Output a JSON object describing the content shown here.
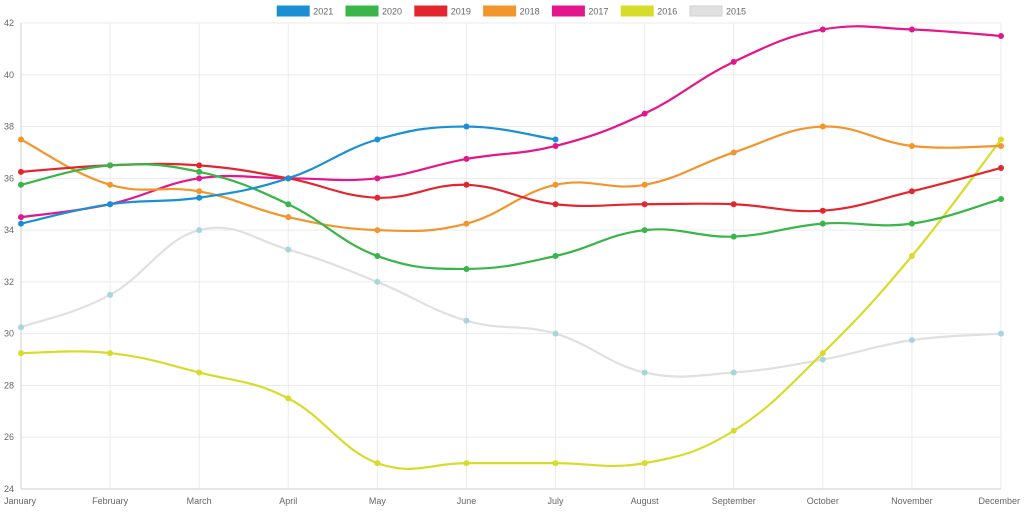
{
  "chart_data": {
    "type": "line",
    "title": "",
    "xlabel": "",
    "ylabel": "",
    "categories": [
      "January",
      "February",
      "March",
      "April",
      "May",
      "June",
      "July",
      "August",
      "September",
      "October",
      "November",
      "December"
    ],
    "ylim": [
      24,
      42
    ],
    "yticks": [
      24,
      26,
      28,
      30,
      32,
      34,
      36,
      38,
      40,
      42
    ],
    "grid": true,
    "legend_position": "top",
    "series": [
      {
        "name": "2021",
        "color": "#1a90d4",
        "values": [
          34.25,
          35,
          35.25,
          36,
          37.5,
          38,
          37.5,
          null,
          null,
          null,
          null,
          null
        ]
      },
      {
        "name": "2020",
        "color": "#39b54a",
        "values": [
          35.75,
          36.5,
          36.25,
          35,
          33,
          32.5,
          33,
          34,
          33.75,
          34.25,
          34.25,
          35.2
        ]
      },
      {
        "name": "2019",
        "color": "#e3262e",
        "values": [
          36.25,
          36.5,
          36.5,
          36,
          35.25,
          35.75,
          35,
          35,
          35,
          34.75,
          35.5,
          36.4
        ]
      },
      {
        "name": "2018",
        "color": "#f3952d",
        "values": [
          37.5,
          35.75,
          35.5,
          34.5,
          34,
          34.25,
          35.75,
          35.75,
          37,
          38,
          37.25,
          37.25
        ]
      },
      {
        "name": "2017",
        "color": "#e4168c",
        "values": [
          34.5,
          35,
          36,
          36,
          36,
          36.75,
          37.25,
          38.5,
          40.5,
          41.75,
          41.75,
          41.5
        ]
      },
      {
        "name": "2016",
        "color": "#d7dc2a",
        "values": [
          29.25,
          29.25,
          28.5,
          27.5,
          25,
          25,
          25,
          25,
          26.25,
          29.25,
          33,
          37.5
        ]
      },
      {
        "name": "2015",
        "color": "#e0e0e0",
        "point_color": "#a9d4dc",
        "values": [
          30.25,
          31.5,
          34,
          33.25,
          32,
          30.5,
          30,
          28.5,
          28.5,
          29,
          29.75,
          30
        ]
      }
    ]
  }
}
